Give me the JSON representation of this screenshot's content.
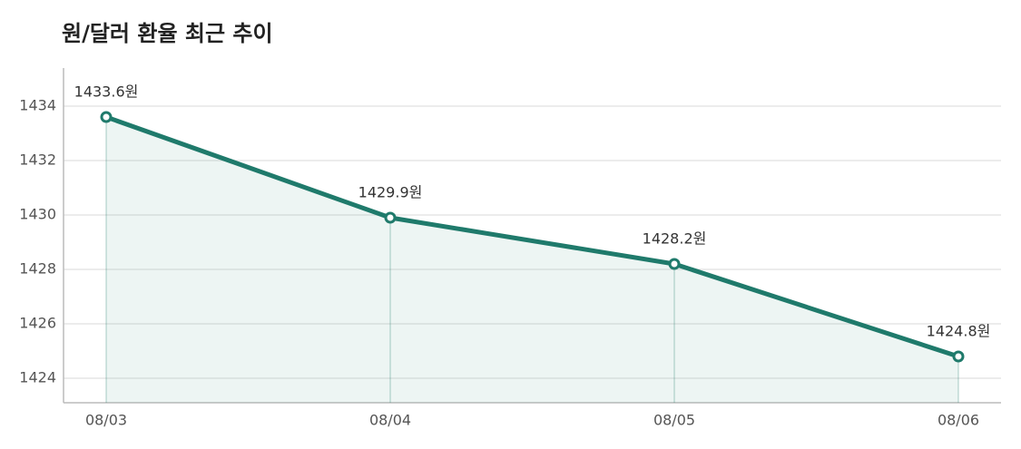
{
  "chart_data": {
    "type": "line",
    "title": "원/달러 환율 최근 추이",
    "categories": [
      "08/03",
      "08/04",
      "08/05",
      "08/06"
    ],
    "series": [
      {
        "name": "원/달러 환율",
        "color": "#1f7a6b",
        "values": [
          1433.6,
          1429.9,
          1428.2,
          1424.8
        ],
        "value_labels": [
          "1433.6원",
          "1429.9원",
          "1428.2원",
          "1424.8원"
        ]
      }
    ],
    "ylim": [
      1423.1,
      1435.4
    ],
    "yticks": [
      1424,
      1426,
      1428,
      1430,
      1432,
      1434
    ],
    "grid": true,
    "area": true
  }
}
